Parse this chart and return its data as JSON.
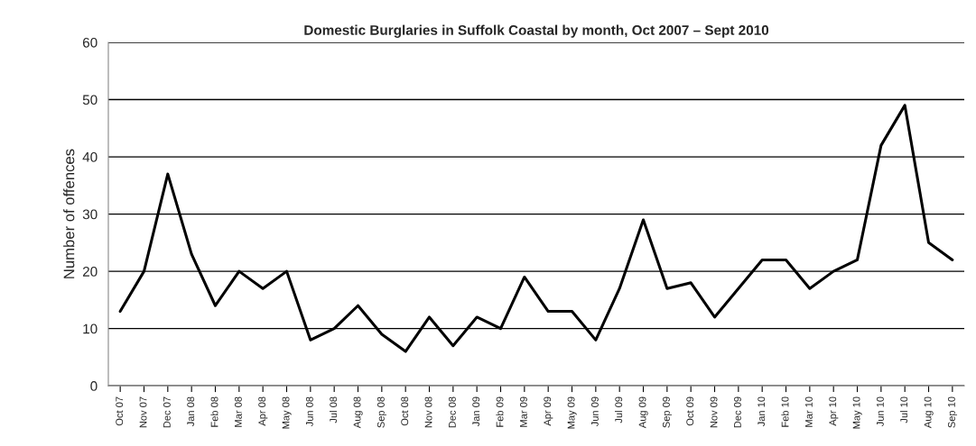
{
  "chart_data": {
    "type": "line",
    "title": "Domestic Burglaries in Suffolk Coastal by month, Oct 2007 – Sept 2010",
    "ylabel": "Number of offences",
    "categories": [
      "Oct 07",
      "Nov 07",
      "Dec 07",
      "Jan 08",
      "Feb 08",
      "Mar 08",
      "Apr 08",
      "May 08",
      "Jun 08",
      "Jul 08",
      "Aug 08",
      "Sep 08",
      "Oct 08",
      "Nov 08",
      "Dec 08",
      "Jan 09",
      "Feb 09",
      "Mar 09",
      "Apr 09",
      "May 09",
      "Jun 09",
      "Jul 09",
      "Aug 09",
      "Sep 09",
      "Oct 09",
      "Nov 09",
      "Dec 09",
      "Jan 10",
      "Feb 10",
      "Mar 10",
      "Apr 10",
      "May 10",
      "Jun 10",
      "Jul 10",
      "Aug 10",
      "Sep 10"
    ],
    "series": [
      {
        "color": "#000000",
        "values": [
          13,
          20,
          37,
          23,
          14,
          20,
          17,
          20,
          8,
          10,
          14,
          9,
          6,
          12,
          7,
          12,
          10,
          19,
          13,
          13,
          8,
          17,
          29,
          17,
          18,
          12,
          17,
          22,
          22,
          17,
          20,
          22,
          42,
          49,
          25,
          22
        ]
      }
    ],
    "ylim": [
      0,
      60
    ],
    "yticks": [
      0,
      10,
      20,
      30,
      40,
      50,
      60
    ],
    "grid": "y",
    "legend": false,
    "marker": "none",
    "line_style": "solid"
  }
}
